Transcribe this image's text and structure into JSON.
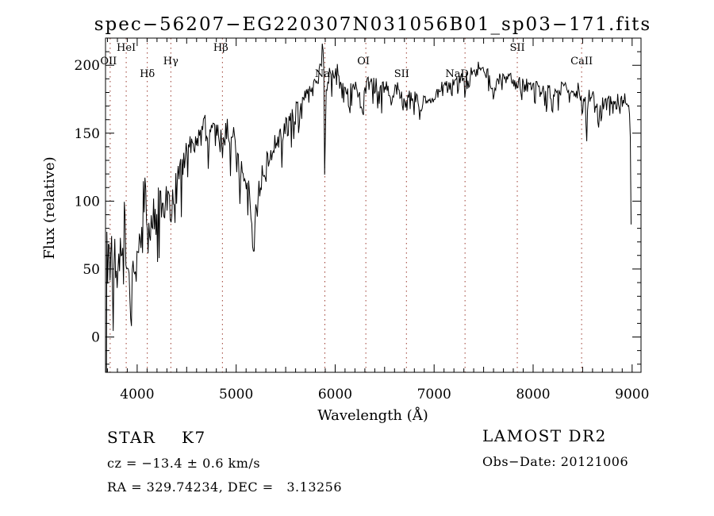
{
  "page": {
    "background": "#ffffff",
    "foreground": "#000000"
  },
  "chart_data": {
    "type": "line",
    "title": "spec−56207−EG220307N031056B01_sp03−171.fits",
    "xlabel": "Wavelength (Å)",
    "ylabel": "Flux (relative)",
    "xlim": [
      3680,
      9090
    ],
    "ylim": [
      -26,
      220
    ],
    "x_major_ticks": [
      4000,
      5000,
      6000,
      7000,
      8000,
      9000
    ],
    "x_minor_step": 100,
    "x_medium_step": 500,
    "y_major_ticks": [
      0,
      50,
      100,
      150,
      200
    ],
    "y_minor_step": 10,
    "grid": false,
    "legend": "none",
    "line_color": "#000000",
    "marker_line_color": "#9b3a2e",
    "spectral_lines": [
      {
        "label": "OII",
        "wavelength": 3727,
        "row": 1,
        "dx": -2
      },
      {
        "label": "HeI",
        "wavelength": 3889,
        "row": 0,
        "dx": 0
      },
      {
        "label": "Hδ",
        "wavelength": 4102,
        "row": 2,
        "dx": 0
      },
      {
        "label": "Hγ",
        "wavelength": 4340,
        "row": 1,
        "dx": 0
      },
      {
        "label": "Hβ",
        "wavelength": 4861,
        "row": 0,
        "dx": -2
      },
      {
        "label": "Na",
        "wavelength": 5896,
        "row": 2,
        "dx": -3
      },
      {
        "label": "OI",
        "wavelength": 6310,
        "row": 1,
        "dx": -3
      },
      {
        "label": "SII",
        "wavelength": 6720,
        "row": 2,
        "dx": -6
      },
      {
        "label": "NaD",
        "wavelength": 7312,
        "row": 2,
        "dx": -10
      },
      {
        "label": "SII",
        "wavelength": 7840,
        "row": 0,
        "dx": 0
      },
      {
        "label": "CaII",
        "wavelength": 8490,
        "row": 1,
        "dx": 0
      }
    ],
    "series": [
      {
        "name": "flux",
        "anchors": [
          [
            3686,
            40
          ],
          [
            3694,
            60
          ],
          [
            3702,
            42
          ],
          [
            3712,
            55
          ],
          [
            3722,
            48
          ],
          [
            3735,
            52
          ],
          [
            3750,
            56
          ],
          [
            3770,
            50
          ],
          [
            3790,
            55
          ],
          [
            3810,
            52
          ],
          [
            3830,
            56
          ],
          [
            3850,
            52
          ],
          [
            3870,
            55
          ],
          [
            3890,
            50
          ],
          [
            3910,
            48
          ],
          [
            3933,
            30
          ],
          [
            3950,
            46
          ],
          [
            3968,
            36
          ],
          [
            3985,
            48
          ],
          [
            4000,
            56
          ],
          [
            4030,
            70
          ],
          [
            4060,
            92
          ],
          [
            4080,
            112
          ],
          [
            4095,
            82
          ],
          [
            4110,
            72
          ],
          [
            4140,
            80
          ],
          [
            4170,
            78
          ],
          [
            4200,
            88
          ],
          [
            4230,
            96
          ],
          [
            4260,
            92
          ],
          [
            4290,
            100
          ],
          [
            4320,
            96
          ],
          [
            4340,
            88
          ],
          [
            4370,
            106
          ],
          [
            4400,
            118
          ],
          [
            4430,
            122
          ],
          [
            4460,
            128
          ],
          [
            4500,
            135
          ],
          [
            4540,
            140
          ],
          [
            4570,
            138
          ],
          [
            4600,
            147
          ],
          [
            4630,
            150
          ],
          [
            4660,
            158
          ],
          [
            4680,
            162
          ],
          [
            4700,
            152
          ],
          [
            4730,
            148
          ],
          [
            4760,
            152
          ],
          [
            4800,
            156
          ],
          [
            4830,
            150
          ],
          [
            4861,
            136
          ],
          [
            4880,
            148
          ],
          [
            4900,
            154
          ],
          [
            4930,
            150
          ],
          [
            4960,
            148
          ],
          [
            5000,
            138
          ],
          [
            5040,
            125
          ],
          [
            5080,
            118
          ],
          [
            5120,
            108
          ],
          [
            5150,
            95
          ],
          [
            5170,
            62
          ],
          [
            5185,
            85
          ],
          [
            5200,
            92
          ],
          [
            5220,
            102
          ],
          [
            5250,
            115
          ],
          [
            5280,
            122
          ],
          [
            5310,
            128
          ],
          [
            5340,
            132
          ],
          [
            5370,
            138
          ],
          [
            5400,
            142
          ],
          [
            5440,
            148
          ],
          [
            5480,
            152
          ],
          [
            5520,
            156
          ],
          [
            5560,
            160
          ],
          [
            5600,
            165
          ],
          [
            5640,
            170
          ],
          [
            5680,
            174
          ],
          [
            5720,
            178
          ],
          [
            5760,
            182
          ],
          [
            5800,
            188
          ],
          [
            5830,
            192
          ],
          [
            5855,
            200
          ],
          [
            5875,
            212
          ],
          [
            5884,
            218
          ],
          [
            5890,
            150
          ],
          [
            5896,
            112
          ],
          [
            5904,
            172
          ],
          [
            5915,
            188
          ],
          [
            5930,
            192
          ],
          [
            5950,
            196
          ],
          [
            5980,
            190
          ],
          [
            6010,
            192
          ],
          [
            6040,
            188
          ],
          [
            6080,
            185
          ],
          [
            6120,
            180
          ],
          [
            6150,
            168
          ],
          [
            6180,
            182
          ],
          [
            6210,
            186
          ],
          [
            6240,
            180
          ],
          [
            6270,
            165
          ],
          [
            6300,
            178
          ],
          [
            6330,
            186
          ],
          [
            6360,
            188
          ],
          [
            6400,
            184
          ],
          [
            6440,
            186
          ],
          [
            6480,
            183
          ],
          [
            6520,
            185
          ],
          [
            6563,
            172
          ],
          [
            6590,
            180
          ],
          [
            6620,
            183
          ],
          [
            6650,
            180
          ],
          [
            6680,
            178
          ],
          [
            6717,
            170
          ],
          [
            6750,
            178
          ],
          [
            6790,
            180
          ],
          [
            6830,
            175
          ],
          [
            6867,
            163
          ],
          [
            6900,
            175
          ],
          [
            6940,
            178
          ],
          [
            6980,
            176
          ],
          [
            7020,
            178
          ],
          [
            7060,
            180
          ],
          [
            7100,
            182
          ],
          [
            7150,
            185
          ],
          [
            7200,
            188
          ],
          [
            7250,
            190
          ],
          [
            7300,
            190
          ],
          [
            7350,
            193
          ],
          [
            7400,
            195
          ],
          [
            7450,
            197
          ],
          [
            7500,
            198
          ],
          [
            7550,
            192
          ],
          [
            7594,
            176
          ],
          [
            7620,
            185
          ],
          [
            7660,
            190
          ],
          [
            7700,
            193
          ],
          [
            7740,
            191
          ],
          [
            7780,
            189
          ],
          [
            7820,
            187
          ],
          [
            7860,
            188
          ],
          [
            7900,
            186
          ],
          [
            7950,
            185
          ],
          [
            8000,
            186
          ],
          [
            8050,
            184
          ],
          [
            8100,
            183
          ],
          [
            8150,
            181
          ],
          [
            8183,
            172
          ],
          [
            8210,
            180
          ],
          [
            8250,
            182
          ],
          [
            8300,
            184
          ],
          [
            8350,
            182
          ],
          [
            8400,
            183
          ],
          [
            8440,
            181
          ],
          [
            8470,
            180
          ],
          [
            8490,
            178
          ],
          [
            8498,
            152
          ],
          [
            8508,
            178
          ],
          [
            8530,
            177
          ],
          [
            8542,
            148
          ],
          [
            8554,
            176
          ],
          [
            8580,
            178
          ],
          [
            8610,
            176
          ],
          [
            8640,
            174
          ],
          [
            8662,
            152
          ],
          [
            8675,
            172
          ],
          [
            8700,
            174
          ],
          [
            8730,
            170
          ],
          [
            8760,
            173
          ],
          [
            8790,
            171
          ],
          [
            8820,
            168
          ],
          [
            8850,
            172
          ],
          [
            8880,
            170
          ],
          [
            8910,
            174
          ],
          [
            8940,
            176
          ],
          [
            8960,
            172
          ],
          [
            8975,
            165
          ],
          [
            8985,
            140
          ],
          [
            8990,
            80
          ],
          [
            8995,
            5
          ]
        ]
      }
    ],
    "noise_envelope": [
      [
        3686,
        48
      ],
      [
        3720,
        30
      ],
      [
        3780,
        22
      ],
      [
        3850,
        20
      ],
      [
        3950,
        18
      ],
      [
        4050,
        16
      ],
      [
        4200,
        14
      ],
      [
        4350,
        12
      ],
      [
        4500,
        10
      ],
      [
        4700,
        11
      ],
      [
        4900,
        10
      ],
      [
        5100,
        12
      ],
      [
        5300,
        9
      ],
      [
        5500,
        8
      ],
      [
        5700,
        7
      ],
      [
        5900,
        7
      ],
      [
        6100,
        7
      ],
      [
        6300,
        6
      ],
      [
        6600,
        6
      ],
      [
        7000,
        5
      ],
      [
        7400,
        4.5
      ],
      [
        7800,
        5
      ],
      [
        8200,
        5
      ],
      [
        8600,
        5.5
      ],
      [
        8900,
        6
      ],
      [
        8995,
        4
      ]
    ],
    "noise": {
      "seed": 7,
      "sample_step_angstrom": 8,
      "dip_probability": 0.13,
      "dip_scale": 1.9,
      "spike_probability": 0.04,
      "spike_scale": 1.2
    }
  },
  "annotations": {
    "object_class": "STAR",
    "subclass": "K7",
    "cz": "cz = −13.4 ± 0.6 km/s",
    "ra_dec": "RA = 329.74234, DEC =   3.13256",
    "survey": "LAMOST DR2",
    "obs_date": "Obs−Date: 20121006"
  }
}
